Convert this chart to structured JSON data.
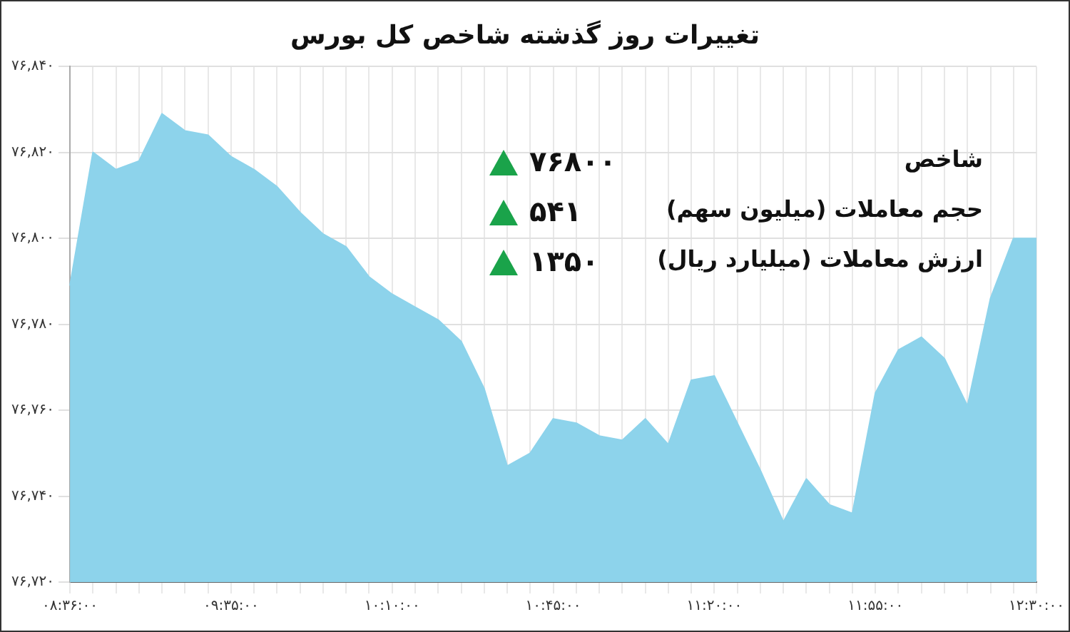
{
  "chart_data": {
    "type": "area",
    "title": "تغییرات روز گذشته شاخص کل بورس",
    "categories": [
      "۰۸:۳۶:۰۰",
      null,
      null,
      null,
      null,
      null,
      null,
      "۰۹:۳۵:۰۰",
      null,
      null,
      null,
      null,
      null,
      null,
      "۱۰:۱۰:۰۰",
      null,
      null,
      null,
      null,
      null,
      null,
      "۱۰:۴۵:۰۰",
      null,
      null,
      null,
      null,
      null,
      null,
      "۱۱:۲۰:۰۰",
      null,
      null,
      null,
      null,
      null,
      null,
      "۱۱:۵۵:۰۰",
      null,
      null,
      null,
      null,
      null,
      null,
      "۱۲:۳۰:۰۰"
    ],
    "values": [
      76789,
      76820,
      76816,
      76818,
      76829,
      76825,
      76824,
      76819,
      76816,
      76812,
      76806,
      76801,
      76798,
      76791,
      76787,
      76784,
      76781,
      76776,
      76765,
      76747,
      76750,
      76758,
      76757,
      76754,
      76753,
      76758,
      76752,
      76767,
      76768,
      76757,
      76746,
      76734,
      76744,
      76738,
      76736,
      76764,
      76774,
      76777,
      76772,
      76761,
      76786,
      76800,
      76800
    ],
    "color": "#8dd3eb",
    "ylim": [
      76720,
      76840
    ],
    "yticks": [
      {
        "value": 76720,
        "label": "۷۶,۷۲۰"
      },
      {
        "value": 76740,
        "label": "۷۶,۷۴۰"
      },
      {
        "value": 76760,
        "label": "۷۶,۷۶۰"
      },
      {
        "value": 76780,
        "label": "۷۶,۷۸۰"
      },
      {
        "value": 76800,
        "label": "۷۶,۸۰۰"
      },
      {
        "value": 76820,
        "label": "۷۶,۸۲۰"
      },
      {
        "value": 76840,
        "label": "۷۶,۸۴۰"
      }
    ],
    "grid": true,
    "legend": false,
    "marker": "none",
    "annotations": [
      "شاخص",
      "۷۶۸۰۰",
      "حجم معاملات (میلیون سهم)",
      "۵۴۱",
      "ارزش معاملات (میلیارد ریال)",
      "۱۳۵۰"
    ]
  }
}
